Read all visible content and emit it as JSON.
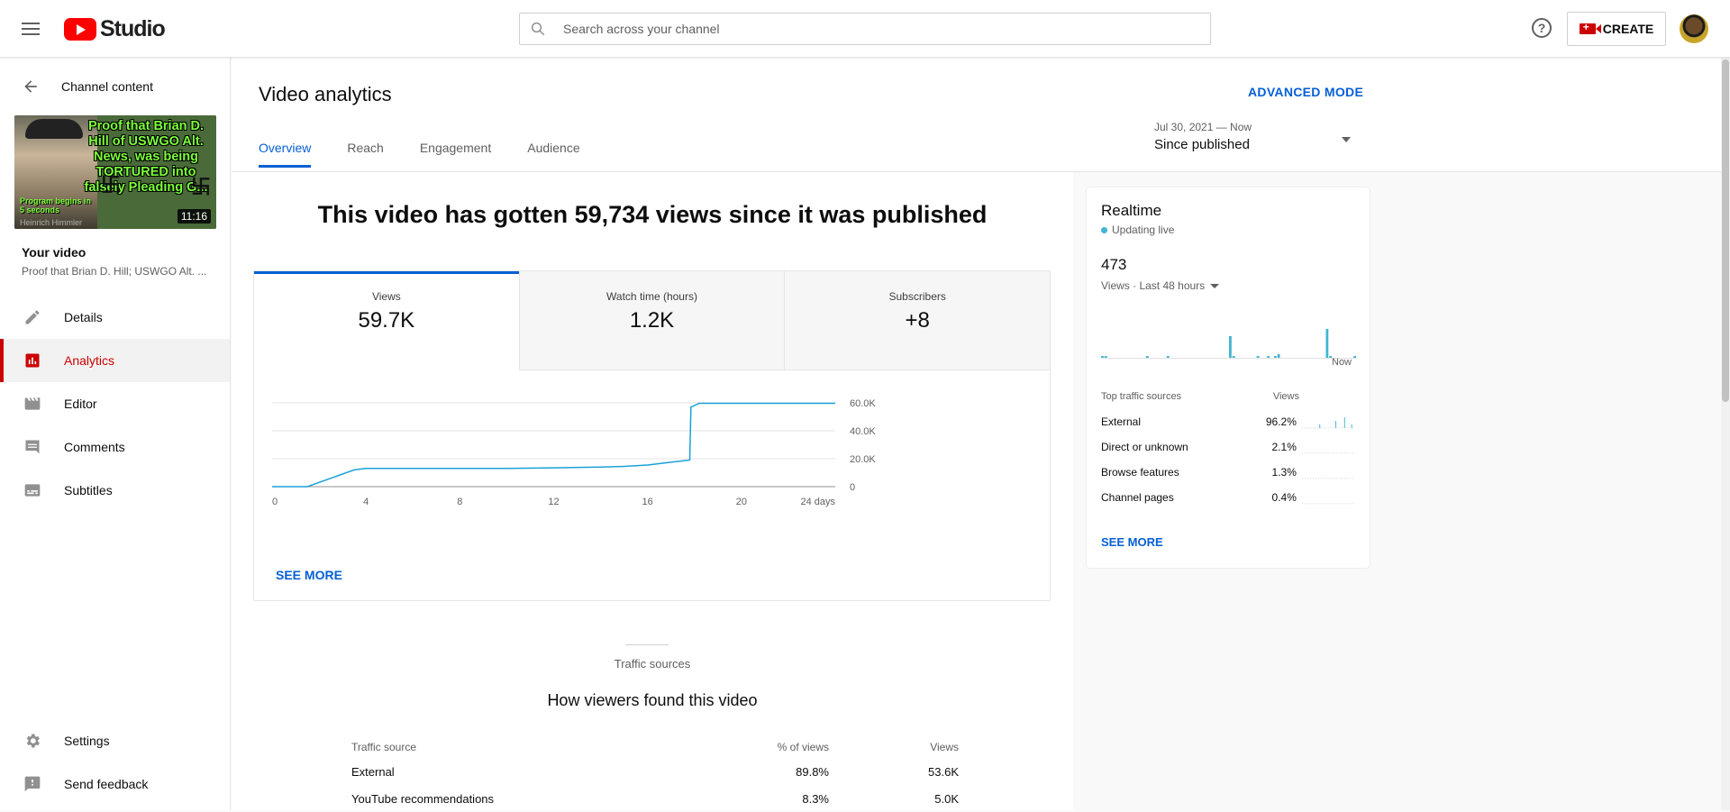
{
  "header": {
    "logo_text": "Studio",
    "search_placeholder": "Search across your channel",
    "help_symbol": "?",
    "create_label": "CREATE"
  },
  "sidebar": {
    "back_label": "Channel content",
    "thumbnail": {
      "overlay_text": "Proof that Brian D. Hill of USWGO Alt. News, was being TORTURED into falsely Pleading G...",
      "small_text": "Program begins in 5 seconds",
      "small_text_2": "Heinrich Himmler",
      "duration": "11:16"
    },
    "your_video_label": "Your video",
    "video_title": "Proof that Brian D. Hill; USWGO Alt. ...",
    "items": [
      {
        "label": "Details",
        "icon": "pencil-icon"
      },
      {
        "label": "Analytics",
        "icon": "analytics-icon",
        "active": true
      },
      {
        "label": "Editor",
        "icon": "clapperboard-icon"
      },
      {
        "label": "Comments",
        "icon": "comment-icon"
      },
      {
        "label": "Subtitles",
        "icon": "subtitles-icon"
      }
    ],
    "bottom_items": [
      {
        "label": "Settings",
        "icon": "gear-icon"
      },
      {
        "label": "Send feedback",
        "icon": "feedback-icon"
      }
    ]
  },
  "main": {
    "title": "Video analytics",
    "advanced_mode": "ADVANCED MODE",
    "tabs": [
      {
        "label": "Overview",
        "active": true
      },
      {
        "label": "Reach"
      },
      {
        "label": "Engagement"
      },
      {
        "label": "Audience"
      }
    ],
    "date_range": "Jul 30, 2021 — Now",
    "date_label": "Since published",
    "headline": "This video has gotten 59,734 views since it was published",
    "metrics": [
      {
        "label": "Views",
        "value": "59.7K"
      },
      {
        "label": "Watch time (hours)",
        "value": "1.2K"
      },
      {
        "label": "Subscribers",
        "value": "+8"
      }
    ],
    "see_more": "SEE MORE",
    "traffic_kicker": "Traffic sources",
    "traffic_title": "How viewers found this video",
    "traffic_headers": [
      "Traffic source",
      "% of views",
      "Views"
    ],
    "traffic_rows": [
      [
        "External",
        "89.8%",
        "53.6K"
      ],
      [
        "YouTube recommendations",
        "8.3%",
        "5.0K"
      ]
    ]
  },
  "chart_data": {
    "type": "line",
    "series": [
      {
        "x": [
          0,
          1.5,
          2,
          2.5,
          3,
          3.5,
          4,
          6,
          8,
          10,
          12,
          14,
          15,
          16,
          17,
          17.8,
          17.85,
          18.2,
          20,
          24
        ],
        "y": [
          0,
          0,
          3000,
          6000,
          9000,
          12000,
          13000,
          13000,
          13000,
          13000,
          13500,
          14000,
          14500,
          15500,
          17500,
          19000,
          57000,
          59700,
          59700,
          59700
        ]
      }
    ],
    "x_ticks": [
      "0",
      "4",
      "8",
      "12",
      "16",
      "20",
      "24 days"
    ],
    "x_tick_values": [
      0,
      4,
      8,
      12,
      16,
      20,
      24
    ],
    "y_ticks": [
      "0",
      "20.0K",
      "40.0K",
      "60.0K"
    ],
    "y_tick_values": [
      0,
      20000,
      40000,
      60000
    ],
    "xlim": [
      0,
      24
    ],
    "ylim": [
      0,
      60000
    ],
    "color": "#1aa1d7"
  },
  "realtime": {
    "title": "Realtime",
    "status": "Updating live",
    "count": "473",
    "metric_label": "Views · Last 48 hours",
    "now_label": "Now",
    "bars": [
      1,
      1,
      0,
      0,
      0,
      0,
      0,
      0,
      0,
      0,
      0,
      0,
      0,
      1,
      0,
      0,
      0,
      0,
      0,
      1,
      0,
      0,
      0,
      0,
      0,
      0,
      0,
      0,
      0,
      0,
      0,
      0,
      0,
      0,
      0,
      0,
      0,
      12,
      1,
      0,
      0,
      0,
      0,
      0,
      0,
      1,
      0,
      0,
      1,
      0,
      1,
      2,
      0,
      0,
      0,
      0,
      0,
      0,
      0,
      0,
      0,
      0,
      0,
      0,
      0,
      16,
      1,
      0,
      0,
      0,
      0,
      0,
      0,
      1
    ],
    "table_headers": [
      "Top traffic sources",
      "Views"
    ],
    "rows": [
      {
        "source": "External",
        "pct": "96.2%"
      },
      {
        "source": "Direct or unknown",
        "pct": "2.1%"
      },
      {
        "source": "Browse features",
        "pct": "1.3%"
      },
      {
        "source": "Channel pages",
        "pct": "0.4%"
      }
    ],
    "see_more": "SEE MORE",
    "accent": "#41b4d2"
  }
}
